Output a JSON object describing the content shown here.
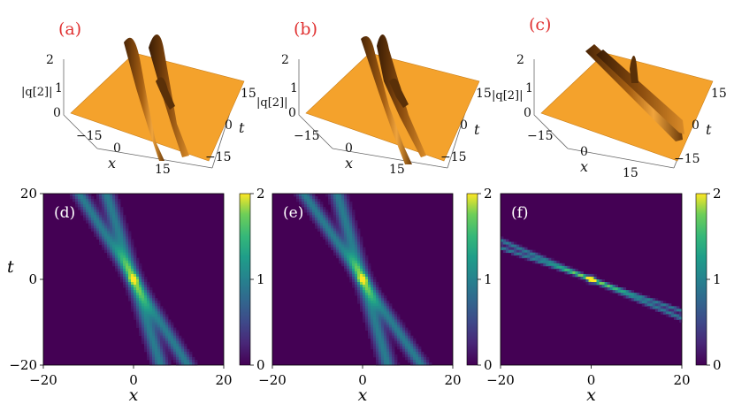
{
  "chart_data": [
    {
      "type": "surface3d",
      "panel_label": "(a)",
      "zlabel": "|q[2]|",
      "xlabel": "x",
      "ylabel": "t",
      "z_ticks": [
        "0",
        "1",
        "2"
      ],
      "x_ticks": [
        "−15",
        "0",
        "15"
      ],
      "t_ticks": [
        "15",
        "0",
        "−15"
      ],
      "zlim": [
        0,
        2
      ],
      "xlim": [
        -15,
        15
      ],
      "tlim": [
        -15,
        15
      ],
      "peak_value": 2,
      "background_value": 0.7,
      "colors": {
        "surface": "#f4a22c",
        "shadow": "#6b3a0a"
      }
    },
    {
      "type": "surface3d",
      "panel_label": "(b)",
      "zlabel": "|q[2]|",
      "xlabel": "x",
      "ylabel": "t",
      "z_ticks": [
        "0",
        "1",
        "2"
      ],
      "x_ticks": [
        "−15",
        "0",
        "15"
      ],
      "t_ticks": [
        "15",
        "0",
        "−15"
      ],
      "zlim": [
        0,
        2
      ],
      "xlim": [
        -15,
        15
      ],
      "tlim": [
        -15,
        15
      ],
      "peak_value": 2,
      "background_value": 0.7,
      "colors": {
        "surface": "#f4a22c",
        "shadow": "#6b3a0a"
      }
    },
    {
      "type": "surface3d",
      "panel_label": "(c)",
      "zlabel": "|q[2]|",
      "xlabel": "x",
      "ylabel": "t",
      "z_ticks": [
        "0",
        "1",
        "2"
      ],
      "x_ticks": [
        "−15",
        "0",
        "15"
      ],
      "t_ticks": [
        "15",
        "0",
        "−15"
      ],
      "zlim": [
        0,
        2
      ],
      "xlim": [
        -15,
        15
      ],
      "tlim": [
        -15,
        15
      ],
      "peak_value": 2,
      "background_value": 0.7,
      "colors": {
        "surface": "#f4a22c",
        "shadow": "#6b3a0a"
      }
    },
    {
      "type": "heatmap",
      "panel_label": "(d)",
      "xlabel": "x",
      "ylabel": "t",
      "xlim": [
        -20,
        20
      ],
      "ylim": [
        -20,
        20
      ],
      "x_ticks": [
        -20,
        0,
        20
      ],
      "y_ticks": [
        -20,
        0,
        20
      ],
      "colorbar": {
        "min": 0,
        "max": 2,
        "ticks": [
          0,
          1,
          2
        ],
        "colormap": "viridis"
      },
      "background_value": 0.0,
      "beams": [
        {
          "x0": 0,
          "t0": 0,
          "slope_dx_dt": -0.6,
          "width": 1.6,
          "amplitude": 0.85
        },
        {
          "x0": 0,
          "t0": 0,
          "slope_dx_dt": -0.3,
          "width": 1.6,
          "amplitude": 0.85
        }
      ],
      "peak": {
        "x": 0,
        "t": 0,
        "value": 2
      }
    },
    {
      "type": "heatmap",
      "panel_label": "(e)",
      "xlabel": "x",
      "ylabel": "",
      "xlim": [
        -20,
        20
      ],
      "ylim": [
        -20,
        20
      ],
      "x_ticks": [
        -20,
        0,
        20
      ],
      "y_ticks": [],
      "colorbar": {
        "min": 0,
        "max": 2,
        "ticks": [
          0,
          1,
          2
        ],
        "colormap": "viridis"
      },
      "background_value": 0.0,
      "beams": [
        {
          "x0": 0,
          "t0": 0,
          "slope_dx_dt": -0.65,
          "width": 1.6,
          "amplitude": 0.85
        },
        {
          "x0": 0,
          "t0": 0,
          "slope_dx_dt": -0.28,
          "width": 1.6,
          "amplitude": 0.85
        }
      ],
      "peak": {
        "x": 0,
        "t": 0,
        "value": 2
      }
    },
    {
      "type": "heatmap",
      "panel_label": "(f)",
      "xlabel": "x",
      "ylabel": "",
      "xlim": [
        -20,
        20
      ],
      "ylim": [
        -20,
        20
      ],
      "x_ticks": [
        -20,
        0,
        20
      ],
      "y_ticks": [],
      "colorbar": {
        "min": 0,
        "max": 2,
        "ticks": [
          0,
          1,
          2
        ],
        "colormap": "viridis"
      },
      "background_value": 0.0,
      "beams": [
        {
          "x0": 0,
          "t0": 0,
          "slope_dx_dt": -2.7,
          "width": 1.2,
          "amplitude": 0.85
        },
        {
          "x0": 0,
          "t0": 0,
          "slope_dx_dt": -2.2,
          "width": 1.2,
          "amplitude": 0.85
        }
      ],
      "peak": {
        "x": 0,
        "t": 0,
        "value": 2
      }
    }
  ]
}
